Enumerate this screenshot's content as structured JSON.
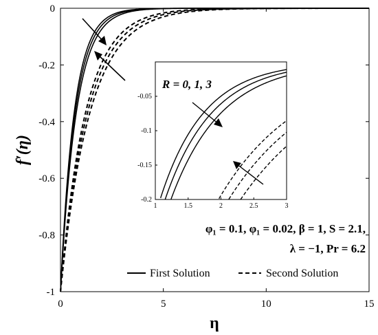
{
  "chart_data": {
    "type": "line",
    "xlabel": "η",
    "ylabel": "f′(η)",
    "xlim": [
      0,
      15
    ],
    "ylim": [
      -1,
      0
    ],
    "xticks": [
      "0",
      "5",
      "10",
      "15"
    ],
    "yticks": [
      "0",
      "-0.2",
      "-0.4",
      "-0.6",
      "-0.8",
      "-1"
    ],
    "legend_placement": "bottom-right",
    "legend": [
      {
        "label": "First Solution",
        "style": "solid"
      },
      {
        "label": "Second Solution",
        "style": "dashed"
      }
    ],
    "parameter_label": "R = 0, 1, 3",
    "annotation_lines": [
      "φ₁ = 0.1, φ₁ = 0.02, β = 1, S = 2.1,",
      "λ = −1, Pr = 6.2"
    ],
    "series": [
      {
        "group": "first",
        "R": 0,
        "decay_rate": 1.5
      },
      {
        "group": "first",
        "R": 1,
        "decay_rate": 1.4
      },
      {
        "group": "first",
        "R": 3,
        "decay_rate": 1.3
      },
      {
        "group": "second",
        "R": 0,
        "decay_rate": 0.82
      },
      {
        "group": "second",
        "R": 1,
        "decay_rate": 0.76
      },
      {
        "group": "second",
        "R": 3,
        "decay_rate": 0.7
      }
    ],
    "inset": {
      "xlim": [
        1,
        3
      ],
      "ylim": [
        -0.2,
        0
      ],
      "xticks": [
        "1",
        "1.5",
        "2",
        "2.5",
        "3"
      ],
      "yticks": [
        "-0.05",
        "-0.1",
        "-0.15",
        "-0.2"
      ]
    }
  }
}
